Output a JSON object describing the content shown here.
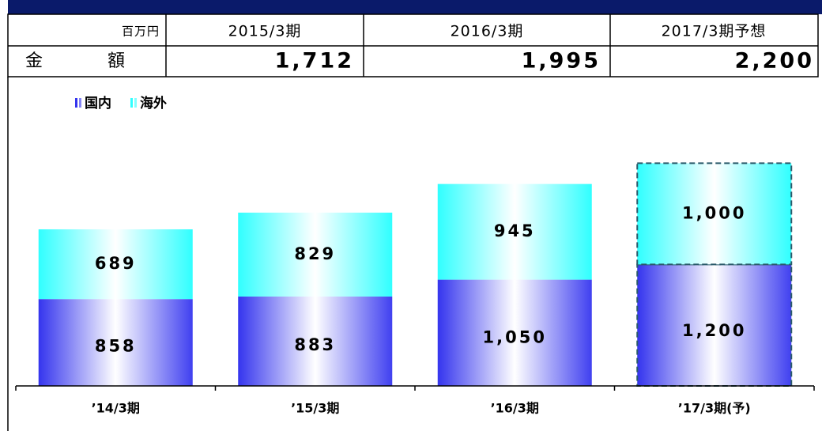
{
  "table": {
    "header": [
      "百万円",
      "2015/3期",
      "2016/3期",
      "2017/3期予想"
    ],
    "rows": [
      [
        "金　額",
        "1,712",
        "1,995",
        "2,200"
      ]
    ]
  },
  "chart_data": {
    "type": "bar",
    "stacked": true,
    "categories": [
      "’14/3期",
      "’15/3期",
      "’16/3期",
      "’17/3期(予)"
    ],
    "series": [
      {
        "name": "国内",
        "color": "#3434ee",
        "values": [
          858,
          883,
          1050,
          1200
        ],
        "value_labels": [
          "858",
          "883",
          "1,050",
          "1,200"
        ]
      },
      {
        "name": "海外",
        "color": "#30ffff",
        "values": [
          689,
          829,
          945,
          1000
        ],
        "value_labels": [
          "689",
          "829",
          "945",
          "1,000"
        ]
      }
    ]
  }
}
